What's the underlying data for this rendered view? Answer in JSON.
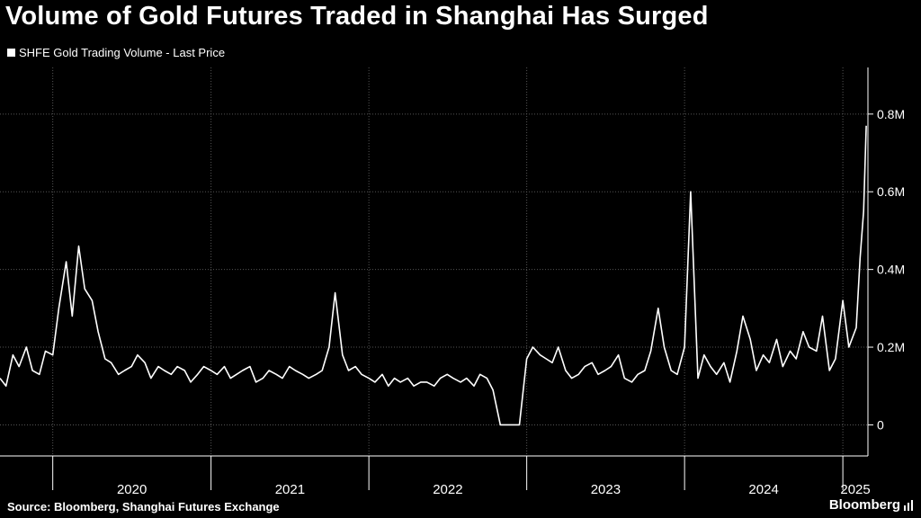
{
  "title": "Volume of Gold Futures Traded in Shanghai Has Surged",
  "legend_label": "SHFE Gold Trading Volume - Last Price",
  "source": "Source: Bloomberg, Shanghai Futures Exchange",
  "logo_text": "Bloomberg",
  "colors": {
    "background": "#000000",
    "line": "#ffffff",
    "grid": "#555555",
    "text": "#ffffff"
  },
  "chart_data": {
    "type": "line",
    "title": "Volume of Gold Futures Traded in Shanghai Has Surged",
    "grid": true,
    "legend_position": "top-left",
    "y_axis_side": "right",
    "ylim": [
      -80000,
      920000
    ],
    "yticks": [
      0,
      200000,
      400000,
      600000,
      800000
    ],
    "ytick_labels": [
      "0",
      "0.2M",
      "0.4M",
      "0.6M",
      "0.8M"
    ],
    "xlim": [
      "2019-09-01",
      "2025-02-28"
    ],
    "xtick_labels": [
      "2020",
      "2021",
      "2022",
      "2023",
      "2024",
      "2025"
    ],
    "year_boundaries": [
      "2020-01-01",
      "2021-01-01",
      "2022-01-01",
      "2023-01-01",
      "2024-01-01",
      "2025-01-01"
    ],
    "series": [
      {
        "name": "SHFE Gold Trading Volume - Last Price",
        "x": [
          "2019-09-01",
          "2019-09-15",
          "2019-10-01",
          "2019-10-15",
          "2019-11-01",
          "2019-11-15",
          "2019-12-01",
          "2019-12-15",
          "2020-01-01",
          "2020-01-15",
          "2020-02-01",
          "2020-02-15",
          "2020-03-01",
          "2020-03-15",
          "2020-04-01",
          "2020-04-15",
          "2020-05-01",
          "2020-05-15",
          "2020-06-01",
          "2020-06-15",
          "2020-07-01",
          "2020-07-15",
          "2020-08-01",
          "2020-08-15",
          "2020-09-01",
          "2020-09-15",
          "2020-10-01",
          "2020-10-15",
          "2020-11-01",
          "2020-11-15",
          "2020-12-01",
          "2020-12-15",
          "2021-01-01",
          "2021-01-15",
          "2021-02-01",
          "2021-02-15",
          "2021-03-01",
          "2021-03-15",
          "2021-04-01",
          "2021-04-15",
          "2021-05-01",
          "2021-05-15",
          "2021-06-01",
          "2021-06-15",
          "2021-07-01",
          "2021-07-15",
          "2021-08-01",
          "2021-08-15",
          "2021-09-01",
          "2021-09-15",
          "2021-10-01",
          "2021-10-15",
          "2021-11-01",
          "2021-11-15",
          "2021-12-01",
          "2021-12-15",
          "2022-01-01",
          "2022-01-15",
          "2022-02-01",
          "2022-02-15",
          "2022-03-01",
          "2022-03-15",
          "2022-04-01",
          "2022-04-15",
          "2022-05-01",
          "2022-05-15",
          "2022-06-01",
          "2022-06-15",
          "2022-07-01",
          "2022-07-15",
          "2022-08-01",
          "2022-08-15",
          "2022-09-01",
          "2022-09-15",
          "2022-10-01",
          "2022-10-15",
          "2022-11-01",
          "2022-11-15",
          "2022-12-01",
          "2022-12-15",
          "2023-01-01",
          "2023-01-15",
          "2023-02-01",
          "2023-02-15",
          "2023-03-01",
          "2023-03-15",
          "2023-04-01",
          "2023-04-15",
          "2023-05-01",
          "2023-05-15",
          "2023-06-01",
          "2023-06-15",
          "2023-07-01",
          "2023-07-15",
          "2023-08-01",
          "2023-08-15",
          "2023-09-01",
          "2023-09-15",
          "2023-10-01",
          "2023-10-15",
          "2023-11-01",
          "2023-11-15",
          "2023-12-01",
          "2023-12-15",
          "2024-01-01",
          "2024-01-15",
          "2024-02-01",
          "2024-02-15",
          "2024-03-01",
          "2024-03-15",
          "2024-04-01",
          "2024-04-15",
          "2024-05-01",
          "2024-05-15",
          "2024-06-01",
          "2024-06-15",
          "2024-07-01",
          "2024-07-15",
          "2024-08-01",
          "2024-08-15",
          "2024-09-01",
          "2024-09-15",
          "2024-10-01",
          "2024-10-15",
          "2024-11-01",
          "2024-11-15",
          "2024-12-01",
          "2024-12-15",
          "2025-01-01",
          "2025-01-15",
          "2025-02-01",
          "2025-02-10",
          "2025-02-18",
          "2025-02-24"
        ],
        "values": [
          120000,
          100000,
          180000,
          150000,
          200000,
          140000,
          130000,
          190000,
          180000,
          300000,
          420000,
          280000,
          460000,
          350000,
          320000,
          240000,
          170000,
          160000,
          130000,
          140000,
          150000,
          180000,
          160000,
          120000,
          150000,
          140000,
          130000,
          150000,
          140000,
          110000,
          130000,
          150000,
          140000,
          130000,
          150000,
          120000,
          130000,
          140000,
          150000,
          110000,
          120000,
          140000,
          130000,
          120000,
          150000,
          140000,
          130000,
          120000,
          130000,
          140000,
          200000,
          340000,
          180000,
          140000,
          150000,
          130000,
          120000,
          110000,
          130000,
          100000,
          120000,
          110000,
          120000,
          100000,
          110000,
          110000,
          100000,
          120000,
          130000,
          120000,
          110000,
          120000,
          100000,
          130000,
          120000,
          90000,
          0,
          0,
          0,
          0,
          170000,
          200000,
          180000,
          170000,
          160000,
          200000,
          140000,
          120000,
          130000,
          150000,
          160000,
          130000,
          140000,
          150000,
          180000,
          120000,
          110000,
          130000,
          140000,
          190000,
          300000,
          200000,
          140000,
          130000,
          200000,
          600000,
          120000,
          180000,
          150000,
          130000,
          160000,
          110000,
          190000,
          280000,
          220000,
          140000,
          180000,
          160000,
          220000,
          150000,
          190000,
          170000,
          240000,
          200000,
          190000,
          280000,
          140000,
          170000,
          320000,
          200000,
          250000,
          430000,
          550000,
          770000
        ]
      }
    ]
  }
}
